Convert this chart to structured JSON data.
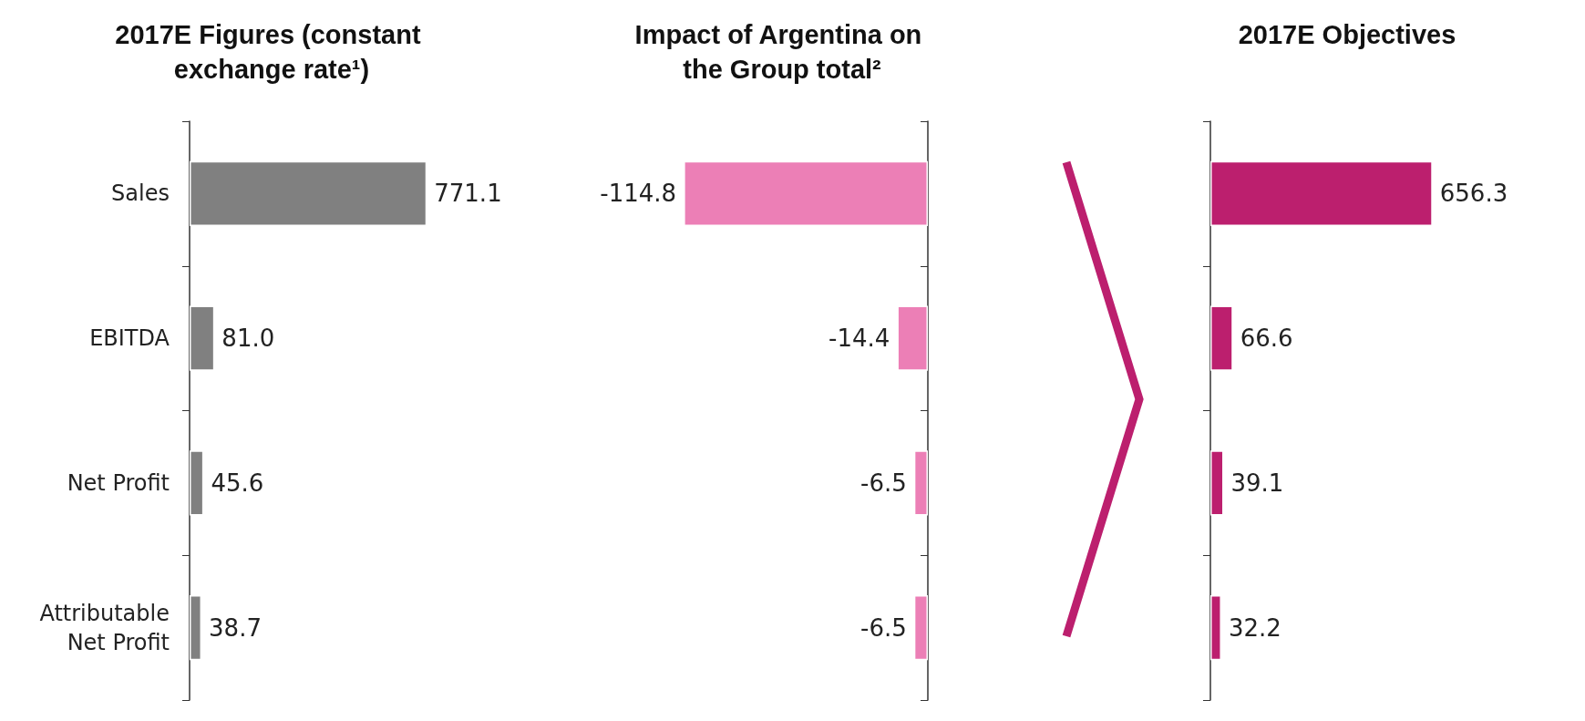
{
  "chart_data": [
    {
      "type": "bar",
      "orientation": "horizontal",
      "title": "2017E Figures (constant exchange rate¹)",
      "categories": [
        "Sales",
        "EBITDA",
        "Net Profit",
        "Attributable\nNet Profit"
      ],
      "values": [
        771.1,
        81.0,
        45.6,
        38.7
      ],
      "value_labels": [
        "771.1",
        "81.0",
        "45.6",
        "38.7"
      ],
      "color": "#808080",
      "tick_labels": "y"
    },
    {
      "type": "bar",
      "orientation": "horizontal",
      "title": "Impact of Argentina on the Group total²",
      "categories": [
        "Sales",
        "EBITDA",
        "Net Profit",
        "Attributable\nNet Profit"
      ],
      "values": [
        -114.8,
        -14.4,
        -6.5,
        -6.5
      ],
      "value_labels": [
        "-114.8",
        "-14.4",
        "-6.5",
        "-6.5"
      ],
      "color": "#ec7fb6",
      "tick_labels": false
    },
    {
      "type": "bar",
      "orientation": "horizontal",
      "title": "2017E Objectives",
      "categories": [
        "Sales",
        "EBITDA",
        "Net Profit",
        "Attributable\nNet Profit"
      ],
      "values": [
        656.3,
        66.6,
        39.1,
        32.2
      ],
      "value_labels": [
        "656.3",
        "66.6",
        "39.1",
        "32.2"
      ],
      "color": "#bc1f6e",
      "tick_labels": false
    }
  ]
}
